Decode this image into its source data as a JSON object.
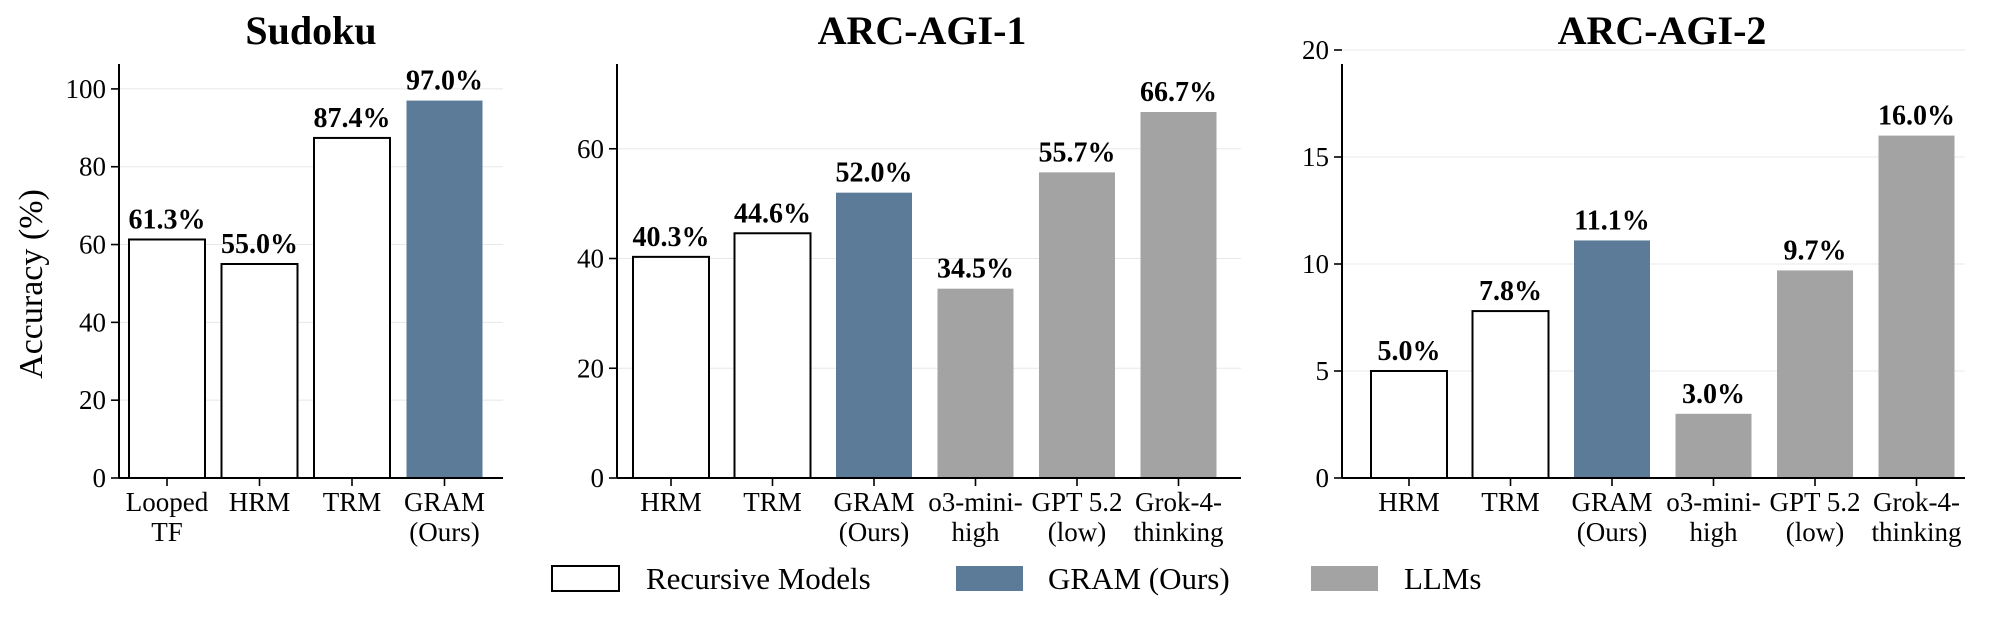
{
  "legend": {
    "items": [
      {
        "label": "Recursive Models",
        "style": "recursive"
      },
      {
        "label": "GRAM (Ours)",
        "style": "gram"
      },
      {
        "label": "LLMs",
        "style": "llm"
      }
    ]
  },
  "colors": {
    "recursive_fill": "#ffffff",
    "recursive_stroke": "#000000",
    "gram": "#5b7b98",
    "llm": "#a3a3a3",
    "grid": "#e8e8e8"
  },
  "chart_data": [
    {
      "type": "bar",
      "title": "Sudoku",
      "ylabel": "Accuracy (%)",
      "ylim": [
        0,
        110
      ],
      "yticks": [
        0,
        20,
        40,
        60,
        80,
        100
      ],
      "grid": true,
      "categories": [
        [
          "Looped",
          "TF"
        ],
        [
          "HRM"
        ],
        [
          "TRM"
        ],
        [
          "GRAM",
          "(Ours)"
        ]
      ],
      "values": [
        61.3,
        55.0,
        87.4,
        97.0
      ],
      "value_labels": [
        "61.3%",
        "55.0%",
        "87.4%",
        "97.0%"
      ],
      "styles": [
        "recursive",
        "recursive",
        "recursive",
        "gram"
      ]
    },
    {
      "type": "bar",
      "title": "ARC-AGI-1",
      "ylabel": "",
      "ylim": [
        0,
        78
      ],
      "yticks": [
        0,
        20,
        40,
        60
      ],
      "grid": true,
      "categories": [
        [
          "HRM"
        ],
        [
          "TRM"
        ],
        [
          "GRAM",
          "(Ours)"
        ],
        [
          "o3-mini-",
          "high"
        ],
        [
          "GPT 5.2",
          "(low)"
        ],
        [
          "Grok-4-",
          "thinking"
        ]
      ],
      "values": [
        40.3,
        44.6,
        52.0,
        34.5,
        55.7,
        66.7
      ],
      "value_labels": [
        "40.3%",
        "44.6%",
        "52.0%",
        "34.5%",
        "55.7%",
        "66.7%"
      ],
      "styles": [
        "recursive",
        "recursive",
        "gram",
        "llm",
        "llm",
        "llm"
      ]
    },
    {
      "type": "bar",
      "title": "ARC-AGI-2",
      "ylabel": "",
      "ylim": [
        0,
        20
      ],
      "yticks": [
        0,
        5,
        10,
        15,
        20
      ],
      "grid": true,
      "categories": [
        [
          "HRM"
        ],
        [
          "TRM"
        ],
        [
          "GRAM",
          "(Ours)"
        ],
        [
          "o3-mini-",
          "high"
        ],
        [
          "GPT 5.2",
          "(low)"
        ],
        [
          "Grok-4-",
          "thinking"
        ]
      ],
      "values": [
        5.0,
        7.8,
        11.1,
        3.0,
        9.7,
        16.0
      ],
      "value_labels": [
        "5.0%",
        "7.8%",
        "11.1%",
        "3.0%",
        "9.7%",
        "16.0%"
      ],
      "styles": [
        "recursive",
        "recursive",
        "gram",
        "llm",
        "llm",
        "llm"
      ]
    }
  ]
}
